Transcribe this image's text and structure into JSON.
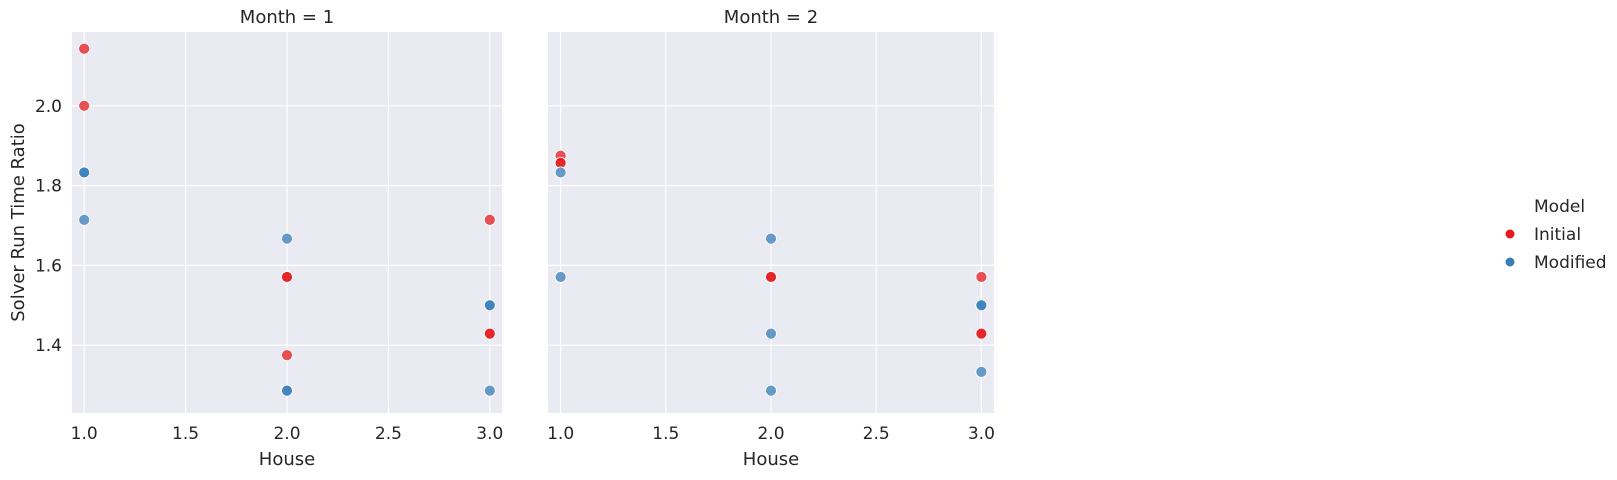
{
  "chart_data": {
    "type": "scatter",
    "ylabel": "Solver Run Time Ratio",
    "xlim": [
      0.94,
      3.06
    ],
    "ylim": [
      1.23,
      2.185
    ],
    "xticks": [
      "1.0",
      "1.5",
      "2.0",
      "2.5",
      "3.0"
    ],
    "yticks": [
      "1.4",
      "1.6",
      "1.8",
      "2.0"
    ],
    "grid": true,
    "legend": {
      "title": "Model",
      "placement": "right",
      "entries": [
        {
          "name": "Initial",
          "color": "#e41a1c"
        },
        {
          "name": "Modified",
          "color": "#377eb8"
        }
      ]
    },
    "panels": [
      {
        "title": "Month = 1",
        "xlabel": "House",
        "series": [
          {
            "name": "Initial",
            "points": [
              {
                "x": 1,
                "y": 2.143
              },
              {
                "x": 1,
                "y": 2.0
              },
              {
                "x": 2,
                "y": 1.571
              },
              {
                "x": 2,
                "y": 1.571
              },
              {
                "x": 2,
                "y": 1.375
              },
              {
                "x": 3,
                "y": 1.714
              },
              {
                "x": 3,
                "y": 1.429
              },
              {
                "x": 3,
                "y": 1.429
              }
            ]
          },
          {
            "name": "Modified",
            "points": [
              {
                "x": 1,
                "y": 1.833
              },
              {
                "x": 1,
                "y": 1.833
              },
              {
                "x": 1,
                "y": 1.714
              },
              {
                "x": 2,
                "y": 1.667
              },
              {
                "x": 2,
                "y": 1.286
              },
              {
                "x": 2,
                "y": 1.286
              },
              {
                "x": 3,
                "y": 1.5
              },
              {
                "x": 3,
                "y": 1.5
              },
              {
                "x": 3,
                "y": 1.286
              }
            ]
          }
        ]
      },
      {
        "title": "Month = 2",
        "xlabel": "House",
        "series": [
          {
            "name": "Initial",
            "points": [
              {
                "x": 1,
                "y": 1.875
              },
              {
                "x": 1,
                "y": 1.857
              },
              {
                "x": 1,
                "y": 1.857
              },
              {
                "x": 2,
                "y": 1.571
              },
              {
                "x": 2,
                "y": 1.571
              },
              {
                "x": 3,
                "y": 1.571
              },
              {
                "x": 3,
                "y": 1.429
              },
              {
                "x": 3,
                "y": 1.429
              }
            ]
          },
          {
            "name": "Modified",
            "points": [
              {
                "x": 1,
                "y": 1.833
              },
              {
                "x": 1,
                "y": 1.571
              },
              {
                "x": 2,
                "y": 1.667
              },
              {
                "x": 2,
                "y": 1.429
              },
              {
                "x": 2,
                "y": 1.286
              },
              {
                "x": 3,
                "y": 1.5
              },
              {
                "x": 3,
                "y": 1.5
              },
              {
                "x": 3,
                "y": 1.333
              }
            ]
          }
        ]
      }
    ]
  }
}
